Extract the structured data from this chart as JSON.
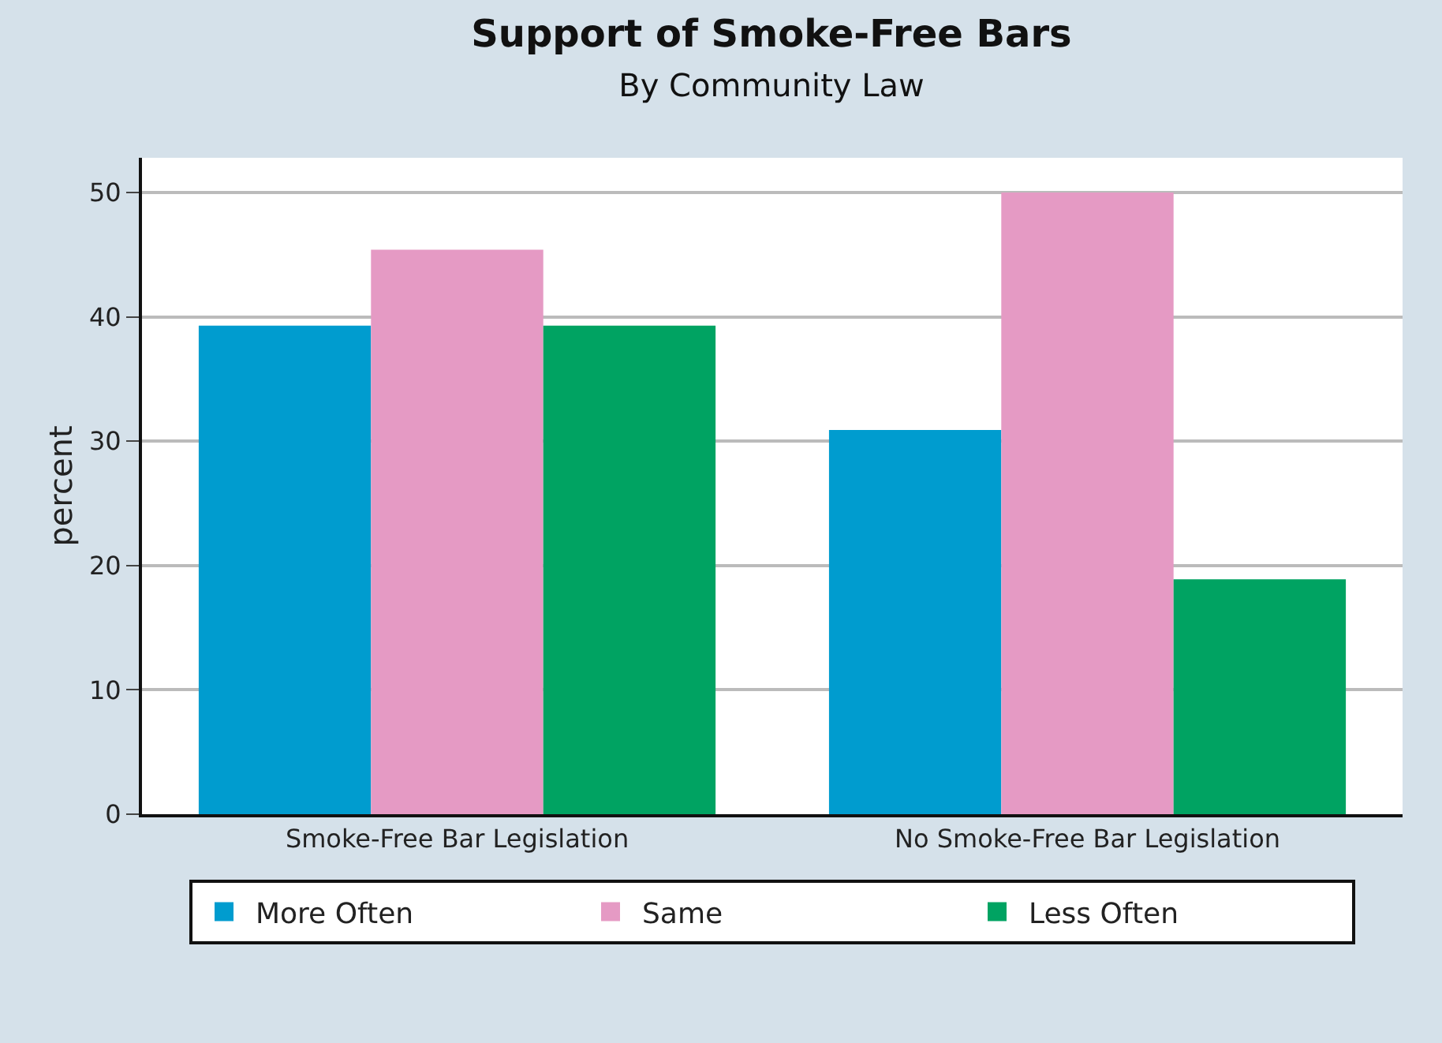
{
  "chart_data": {
    "type": "bar",
    "title": "Support of Smoke-Free Bars",
    "subtitle": "By Community Law",
    "ylabel": "percent",
    "categories": [
      "Smoke-Free Bar Legislation",
      "No Smoke-Free Bar Legislation"
    ],
    "series": [
      {
        "name": "More Often",
        "color": "#009ccf",
        "values": [
          39.3,
          30.9
        ]
      },
      {
        "name": "Same",
        "color": "#e59ac4",
        "values": [
          45.4,
          50
        ]
      },
      {
        "name": "Less Often",
        "color": "#00a362",
        "values": [
          39.3,
          18.9
        ]
      }
    ],
    "ylim": [
      0,
      52.8
    ],
    "yticks": [
      0,
      10,
      20,
      30,
      40,
      50
    ],
    "grid": "y",
    "legend": "bottom"
  }
}
